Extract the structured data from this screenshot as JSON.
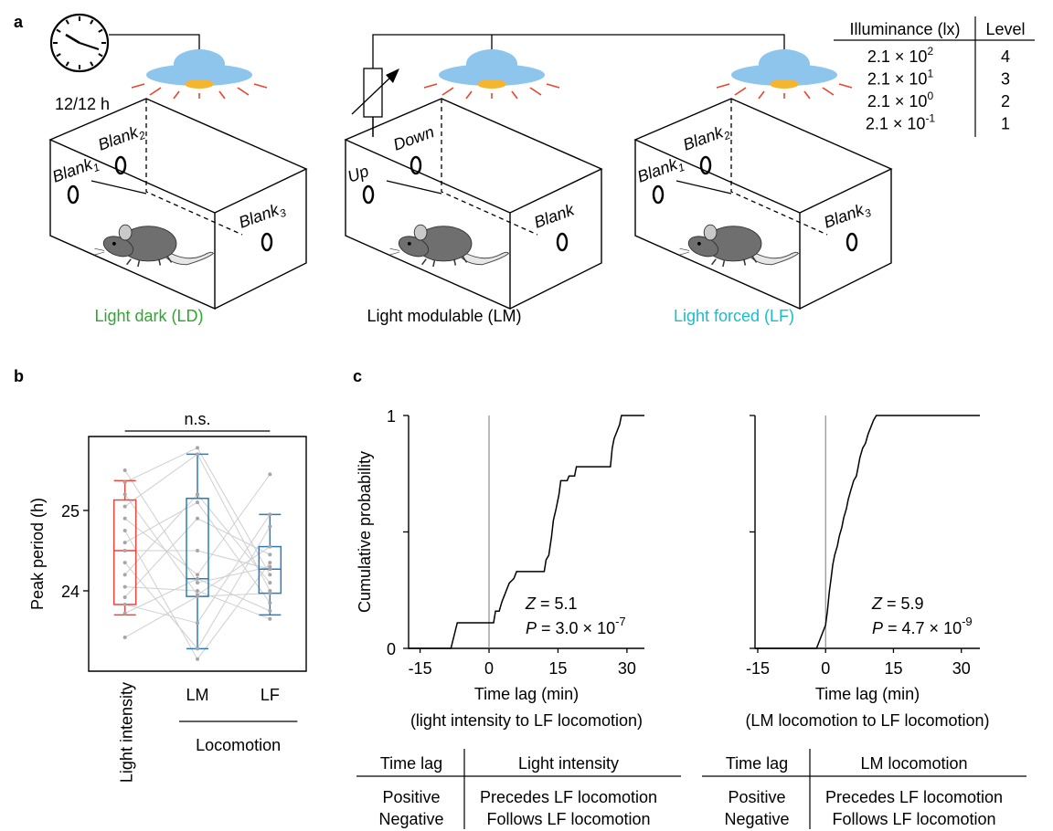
{
  "panel_labels": [
    "a",
    "b",
    "c"
  ],
  "panel_a": {
    "clock_label": "12/12 h",
    "chambers": [
      {
        "caption": "Light dark (LD)",
        "color": "#2ca82c",
        "windows": [
          {
            "text": "Blank",
            "sub": "1"
          },
          {
            "text": "Blank",
            "sub": "2"
          },
          {
            "text": "Blank",
            "sub": "3"
          }
        ]
      },
      {
        "caption": "Light modulable (LM)",
        "color": "#000000",
        "windows": [
          {
            "text": "Up"
          },
          {
            "text": "Down"
          },
          {
            "text": "Blank"
          }
        ]
      },
      {
        "caption": "Light forced (LF)",
        "color": "#1bbccb",
        "windows": [
          {
            "text": "Blank",
            "sub": "1"
          },
          {
            "text": "Blank",
            "sub": "2"
          },
          {
            "text": "Blank",
            "sub": "3"
          }
        ]
      }
    ],
    "illuminance_table": {
      "header": [
        "Illuminance (lx)",
        "Level"
      ],
      "rows": [
        {
          "base": "2.1 × 10",
          "exponent": "2",
          "level": 4
        },
        {
          "base": "2.1 × 10",
          "exponent": "1",
          "level": 3
        },
        {
          "base": "2.1 × 10",
          "exponent": "0",
          "level": 2
        },
        {
          "base": "2.1 × 10",
          "exponent": "-1",
          "level": 1
        }
      ]
    }
  },
  "chart_data": [
    {
      "type": "box",
      "ylabel": "Peak period (h)",
      "categories": [
        "Light intensity",
        "LM",
        "LF"
      ],
      "group_label": "Locomotion",
      "annotation": "n.s.",
      "ylim": [
        23.0,
        25.92
      ],
      "yticks": [
        24,
        25
      ],
      "boxes": [
        {
          "color": "#e8473b",
          "whisker_low": 23.7,
          "q1": 23.83,
          "median": 24.5,
          "q3": 25.13,
          "whisker_high": 25.37
        },
        {
          "color": "#2a7bbf",
          "whisker_low": 23.28,
          "q1": 23.93,
          "median": 24.15,
          "q3": 25.15,
          "whisker_high": 25.7
        },
        {
          "color": "#2a7bbf",
          "whisker_low": 23.7,
          "q1": 23.97,
          "median": 24.27,
          "q3": 24.55,
          "whisker_high": 24.95
        }
      ],
      "point_color": "#a6a6a6",
      "points": [
        [
          25.5,
          24.1,
          24.3
        ],
        [
          25.35,
          25.78,
          24.2
        ],
        [
          25.2,
          23.95,
          24.55
        ],
        [
          25.05,
          25.7,
          24.0
        ],
        [
          24.9,
          24.2,
          25.45
        ],
        [
          24.75,
          23.15,
          24.35
        ],
        [
          24.6,
          25.1,
          23.85
        ],
        [
          24.5,
          24.5,
          24.27
        ],
        [
          24.35,
          23.28,
          24.8
        ],
        [
          24.2,
          25.2,
          24.1
        ],
        [
          24.05,
          24.0,
          23.65
        ],
        [
          23.92,
          24.9,
          24.45
        ],
        [
          23.83,
          23.6,
          24.95
        ],
        [
          23.72,
          24.15,
          23.75
        ],
        [
          23.42,
          23.93,
          23.97
        ]
      ]
    },
    {
      "type": "step",
      "ylabel": "Cumulative probability",
      "xlabel": "Time lag (min)",
      "subtitle": "(light intensity to LF locomotion)",
      "x": [
        -17.5,
        -8.3,
        -6.9,
        1.0,
        1.4,
        2.2,
        2.8,
        3.6,
        4.4,
        5.4,
        6.0,
        12.0,
        12.4,
        13.0,
        13.6,
        14.0,
        14.6,
        15.2,
        15.6,
        17.0,
        17.4,
        18.6,
        19.0,
        26.4,
        26.8,
        27.2,
        27.6,
        28.4,
        28.8,
        33.8
      ],
      "y": [
        0,
        0,
        0.11,
        0.11,
        0.16,
        0.16,
        0.2,
        0.24,
        0.28,
        0.3,
        0.33,
        0.33,
        0.38,
        0.4,
        0.48,
        0.55,
        0.6,
        0.66,
        0.72,
        0.72,
        0.74,
        0.74,
        0.78,
        0.78,
        0.86,
        0.9,
        0.92,
        0.96,
        1,
        1
      ],
      "xlim": [
        -17.5,
        33.8
      ],
      "ylim": [
        0,
        1
      ],
      "xticks": [
        -15,
        0,
        15,
        30
      ],
      "yticks": [
        0,
        1
      ],
      "minor_yticks": [
        0.5
      ],
      "ytick_labels": true,
      "vline": 0,
      "annotations": [
        {
          "symbol": "Z",
          "text": " = 5.1"
        },
        {
          "symbol": "P",
          "text": " = 3.0 × 10",
          "exponent": "-7"
        }
      ]
    },
    {
      "type": "step",
      "xlabel": "Time lag (min)",
      "subtitle": "(LM locomotion to LF locomotion)",
      "x": [
        -15.6,
        -2.0,
        0.0,
        0.4,
        0.8,
        1.2,
        1.6,
        2.0,
        2.6,
        3.0,
        3.6,
        4.0,
        4.6,
        5.0,
        5.6,
        6.2,
        6.8,
        7.2,
        7.6,
        8.2,
        8.8,
        9.4,
        10.0,
        10.6,
        11.2,
        34.1
      ],
      "y": [
        0,
        0,
        0.1,
        0.16,
        0.24,
        0.3,
        0.36,
        0.4,
        0.44,
        0.48,
        0.52,
        0.56,
        0.6,
        0.64,
        0.68,
        0.72,
        0.74,
        0.78,
        0.82,
        0.86,
        0.88,
        0.92,
        0.95,
        0.98,
        1,
        1
      ],
      "xlim": [
        -15.6,
        34.1
      ],
      "ylim": [
        0,
        1
      ],
      "xticks": [
        -15,
        0,
        15,
        30
      ],
      "yticks": [
        0,
        1
      ],
      "minor_yticks": [
        0.5
      ],
      "ytick_labels": false,
      "vline": 0,
      "annotations": [
        {
          "symbol": "Z",
          "text": " = 5.9"
        },
        {
          "symbol": "P",
          "text": " = 4.7 × 10",
          "exponent": "-9"
        }
      ]
    }
  ],
  "lag_tables": [
    {
      "header": [
        "Time lag",
        "Light intensity"
      ],
      "rows": [
        [
          "Positive",
          "Precedes LF locomotion"
        ],
        [
          "Negative",
          "Follows LF locomotion"
        ]
      ]
    },
    {
      "header": [
        "Time lag",
        "LM locomotion"
      ],
      "rows": [
        [
          "Positive",
          "Precedes LF locomotion"
        ],
        [
          "Negative",
          "Follows LF locomotion"
        ]
      ]
    }
  ]
}
